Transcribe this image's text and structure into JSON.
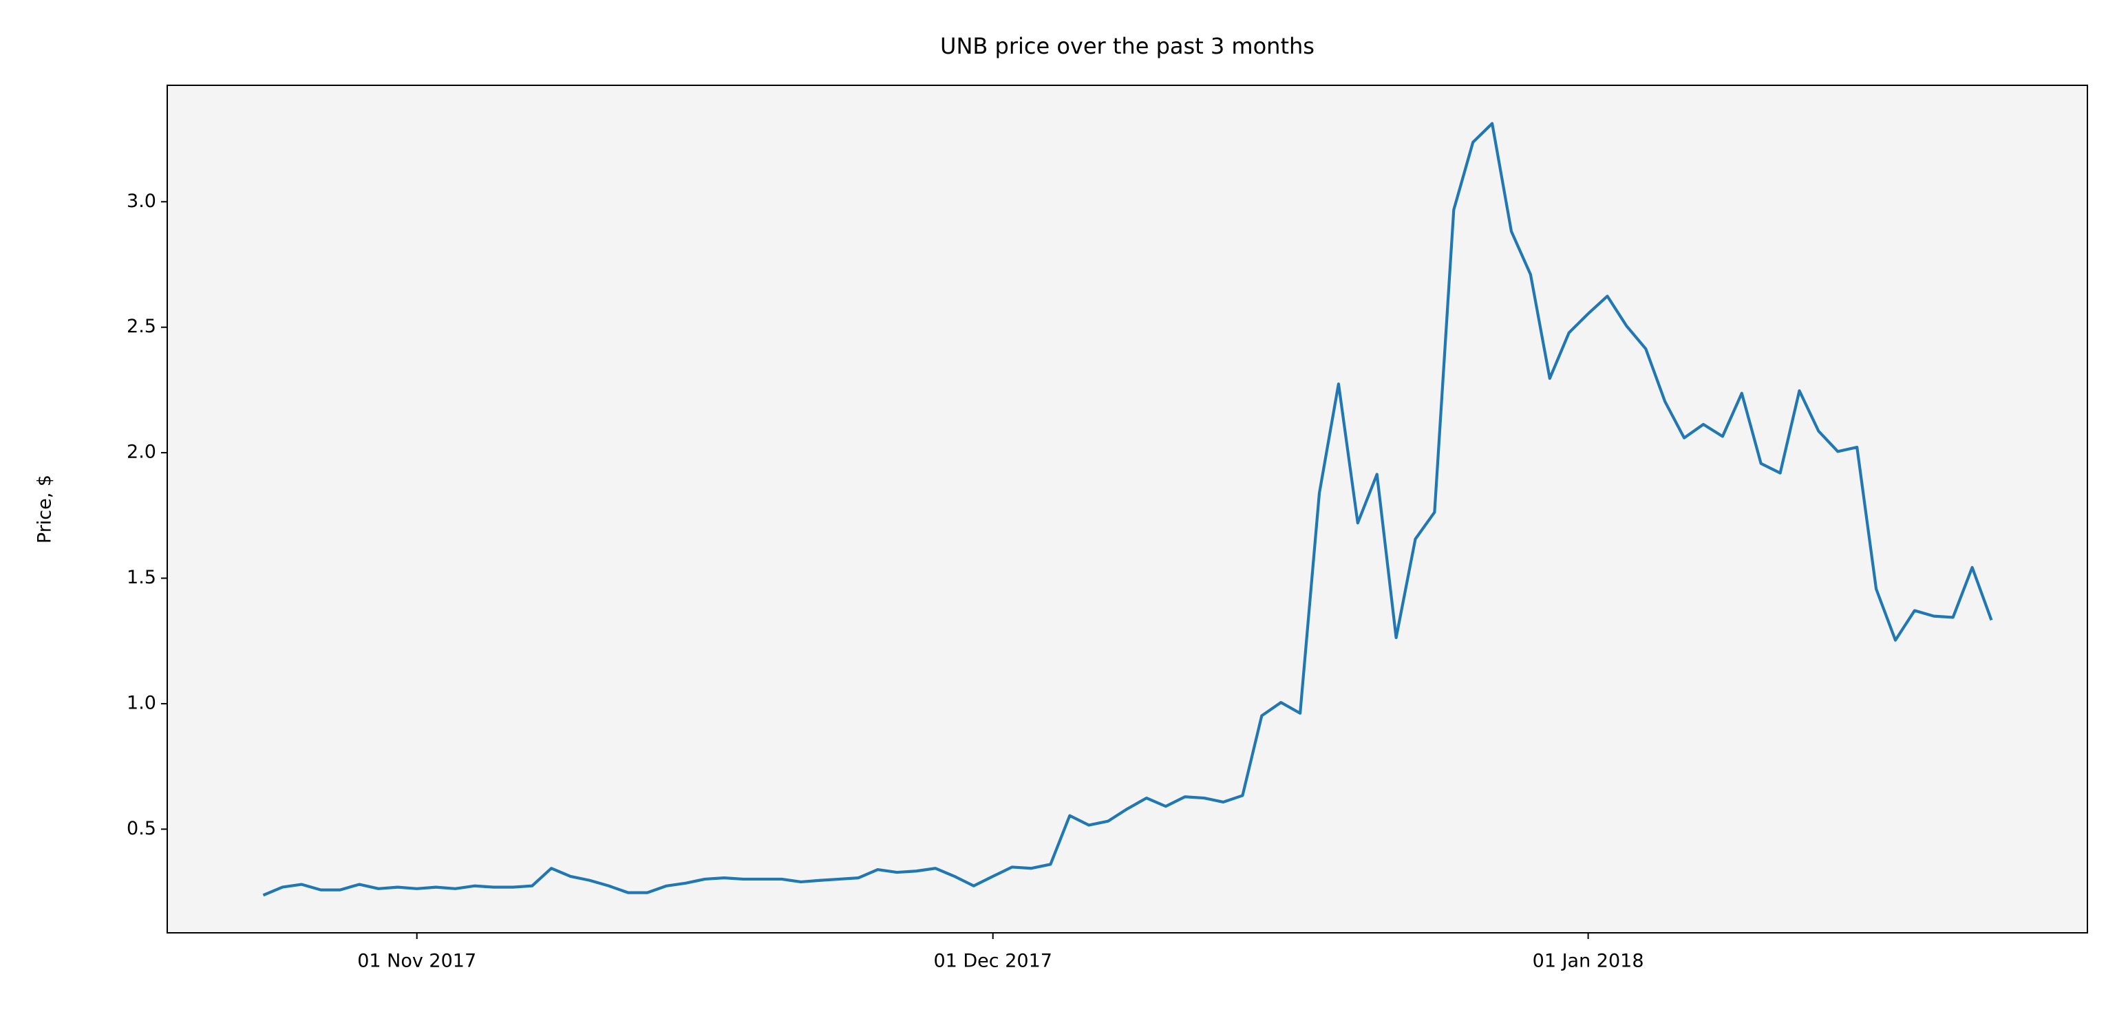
{
  "chart_data": {
    "type": "line",
    "title": "UNB price over the past 3 months",
    "ylabel": "Price, $",
    "color": "#1f77b4",
    "background": "#f4f4f4",
    "x": [
      "2017-10-24",
      "2017-10-25",
      "2017-10-26",
      "2017-10-27",
      "2017-10-28",
      "2017-10-29",
      "2017-10-30",
      "2017-10-31",
      "2017-11-01",
      "2017-11-02",
      "2017-11-03",
      "2017-11-04",
      "2017-11-05",
      "2017-11-06",
      "2017-11-07",
      "2017-11-08",
      "2017-11-09",
      "2017-11-10",
      "2017-11-11",
      "2017-11-12",
      "2017-11-13",
      "2017-11-14",
      "2017-11-15",
      "2017-11-16",
      "2017-11-17",
      "2017-11-18",
      "2017-11-19",
      "2017-11-20",
      "2017-11-21",
      "2017-11-22",
      "2017-11-23",
      "2017-11-24",
      "2017-11-25",
      "2017-11-26",
      "2017-11-27",
      "2017-11-28",
      "2017-11-29",
      "2017-11-30",
      "2017-12-01",
      "2017-12-02",
      "2017-12-03",
      "2017-12-04",
      "2017-12-05",
      "2017-12-06",
      "2017-12-07",
      "2017-12-08",
      "2017-12-09",
      "2017-12-10",
      "2017-12-11",
      "2017-12-12",
      "2017-12-13",
      "2017-12-14",
      "2017-12-15",
      "2017-12-16",
      "2017-12-17",
      "2017-12-18",
      "2017-12-19",
      "2017-12-20",
      "2017-12-21",
      "2017-12-22",
      "2017-12-23",
      "2017-12-24",
      "2017-12-25",
      "2017-12-26",
      "2017-12-27",
      "2017-12-28",
      "2017-12-29",
      "2017-12-30",
      "2017-12-31",
      "2018-01-01",
      "2018-01-02",
      "2018-01-03",
      "2018-01-04",
      "2018-01-05",
      "2018-01-06",
      "2018-01-07",
      "2018-01-08",
      "2018-01-09",
      "2018-01-10",
      "2018-01-11",
      "2018-01-12",
      "2018-01-13",
      "2018-01-14",
      "2018-01-15",
      "2018-01-16",
      "2018-01-17",
      "2018-01-18",
      "2018-01-19",
      "2018-01-20",
      "2018-01-21",
      "2018-01-22"
    ],
    "values": [
      0.237,
      0.269,
      0.28,
      0.258,
      0.258,
      0.28,
      0.263,
      0.269,
      0.263,
      0.269,
      0.263,
      0.274,
      0.269,
      0.269,
      0.274,
      0.344,
      0.312,
      0.296,
      0.274,
      0.247,
      0.247,
      0.274,
      0.285,
      0.301,
      0.306,
      0.301,
      0.301,
      0.301,
      0.29,
      0.296,
      0.301,
      0.306,
      0.339,
      0.328,
      0.333,
      0.344,
      0.312,
      0.274,
      0.312,
      0.349,
      0.344,
      0.36,
      0.554,
      0.516,
      0.532,
      0.581,
      0.624,
      0.591,
      0.629,
      0.624,
      0.608,
      0.634,
      0.952,
      1.005,
      0.962,
      1.839,
      2.274,
      1.72,
      1.914,
      1.263,
      1.656,
      1.763,
      2.968,
      3.237,
      3.312,
      2.882,
      2.71,
      2.296,
      2.478,
      2.554,
      2.624,
      2.505,
      2.414,
      2.204,
      2.059,
      2.113,
      2.065,
      2.237,
      1.957,
      1.919,
      2.247,
      2.086,
      2.005,
      2.022,
      1.457,
      1.253,
      1.371,
      1.349,
      1.344,
      1.543,
      1.333
    ],
    "xlim": [
      "2017-10-19",
      "2018-01-27"
    ],
    "xticks": [
      {
        "value": "2017-11-01",
        "label": "01 Nov 2017"
      },
      {
        "value": "2017-12-01",
        "label": "01 Dec 2017"
      },
      {
        "value": "2018-01-01",
        "label": "01 Jan 2018"
      }
    ],
    "ylim": [
      0.087,
      3.464
    ],
    "yticks": [
      0.5,
      1.0,
      1.5,
      2.0,
      2.5,
      3.0
    ],
    "ytick_labels": [
      "0.5",
      "1.0",
      "1.5",
      "2.0",
      "2.5",
      "3.0"
    ],
    "grid": false
  }
}
